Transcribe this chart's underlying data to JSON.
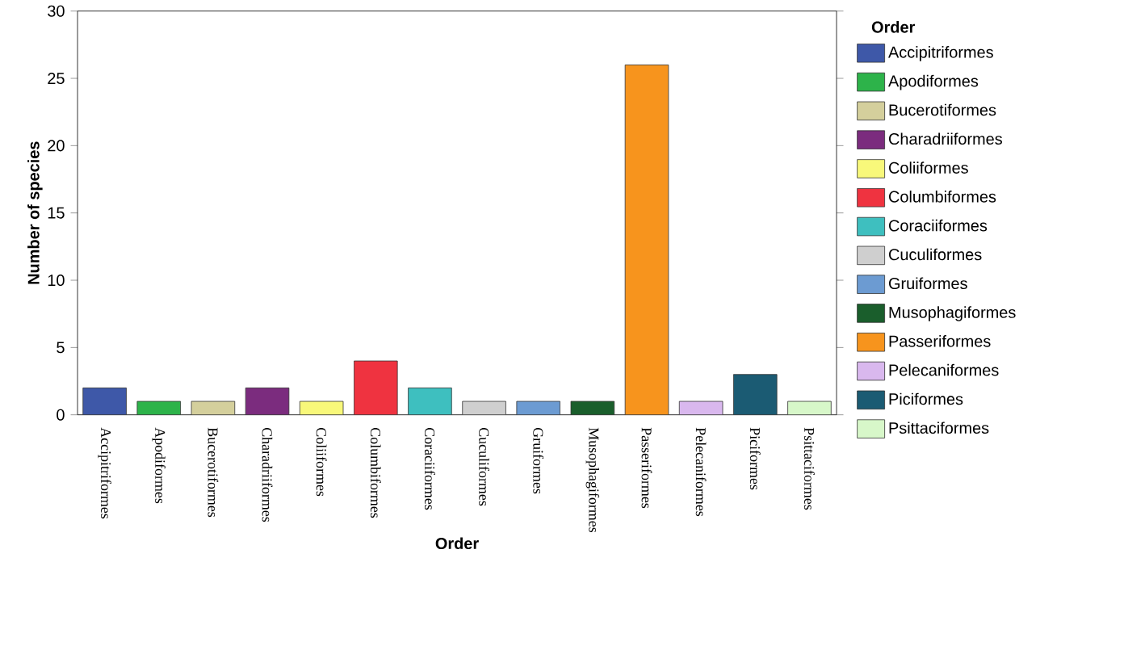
{
  "chart_data": {
    "type": "bar",
    "xlabel": "Order",
    "ylabel": "Number of species",
    "legend_title": "Order",
    "categories": [
      "Accipitriformes",
      "Apodiformes",
      "Bucerotiformes",
      "Charadriiformes",
      "Coliiformes",
      "Columbiformes",
      "Coraciiformes",
      "Cuculiformes",
      "Gruiformes",
      "Musophagiformes",
      "Passeriformes",
      "Pelecaniformes",
      "Piciformes",
      "Psittaciformes"
    ],
    "series": [
      {
        "name": "Accipitriformes",
        "color": "#3e58a8",
        "values": [
          2,
          null,
          null,
          null,
          null,
          null,
          null,
          null,
          null,
          null,
          null,
          null,
          null,
          null
        ]
      },
      {
        "name": "Apodiformes",
        "color": "#2db34a",
        "values": [
          null,
          1,
          null,
          null,
          null,
          null,
          null,
          null,
          null,
          null,
          null,
          null,
          null,
          null
        ]
      },
      {
        "name": "Bucerotiformes",
        "color": "#d4cf9c",
        "values": [
          null,
          null,
          1,
          null,
          null,
          null,
          null,
          null,
          null,
          null,
          null,
          null,
          null,
          null
        ]
      },
      {
        "name": "Charadriiformes",
        "color": "#7b2c7e",
        "values": [
          null,
          null,
          null,
          2,
          null,
          null,
          null,
          null,
          null,
          null,
          null,
          null,
          null,
          null
        ]
      },
      {
        "name": "Coliiformes",
        "color": "#f8f87a",
        "values": [
          null,
          null,
          null,
          null,
          1,
          null,
          null,
          null,
          null,
          null,
          null,
          null,
          null,
          null
        ]
      },
      {
        "name": "Columbiformes",
        "color": "#ef3340",
        "values": [
          null,
          null,
          null,
          null,
          null,
          4,
          null,
          null,
          null,
          null,
          null,
          null,
          null,
          null
        ]
      },
      {
        "name": "Coraciiformes",
        "color": "#3ebfbf",
        "values": [
          null,
          null,
          null,
          null,
          null,
          null,
          2,
          null,
          null,
          null,
          null,
          null,
          null,
          null
        ]
      },
      {
        "name": "Cuculiformes",
        "color": "#cfcfcf",
        "values": [
          null,
          null,
          null,
          null,
          null,
          null,
          null,
          1,
          null,
          null,
          null,
          null,
          null,
          null
        ]
      },
      {
        "name": "Gruiformes",
        "color": "#6c9bd2",
        "values": [
          null,
          null,
          null,
          null,
          null,
          null,
          null,
          null,
          1,
          null,
          null,
          null,
          null,
          null
        ]
      },
      {
        "name": "Musophagiformes",
        "color": "#1a5e2c",
        "values": [
          null,
          null,
          null,
          null,
          null,
          null,
          null,
          null,
          null,
          1,
          null,
          null,
          null,
          null
        ]
      },
      {
        "name": "Passeriformes",
        "color": "#f7941d",
        "values": [
          null,
          null,
          null,
          null,
          null,
          null,
          null,
          null,
          null,
          null,
          26,
          null,
          null,
          null
        ]
      },
      {
        "name": "Pelecaniformes",
        "color": "#d9b8ee",
        "values": [
          null,
          null,
          null,
          null,
          null,
          null,
          null,
          null,
          null,
          null,
          null,
          1,
          null,
          null
        ]
      },
      {
        "name": "Piciformes",
        "color": "#1b5b73",
        "values": [
          null,
          null,
          null,
          null,
          null,
          null,
          null,
          null,
          null,
          null,
          null,
          null,
          3,
          null
        ]
      },
      {
        "name": "Psittaciformes",
        "color": "#d7f7c9",
        "values": [
          null,
          null,
          null,
          null,
          null,
          null,
          null,
          null,
          null,
          null,
          null,
          null,
          null,
          1
        ]
      }
    ],
    "ylim": [
      0,
      30
    ],
    "yticks": [
      0,
      5,
      10,
      15,
      20,
      25,
      30
    ],
    "legend": "right",
    "grid": false
  }
}
